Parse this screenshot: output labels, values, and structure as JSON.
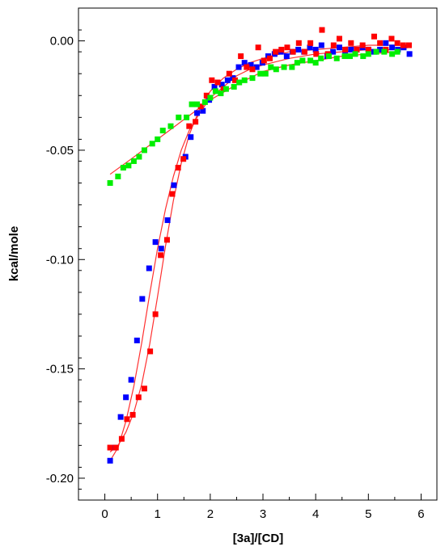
{
  "chart_data": {
    "type": "scatter",
    "title": "",
    "xlabel": "[3a]/[CD]",
    "ylabel": "kcal/mole",
    "xlim": [
      -0.5,
      6.3
    ],
    "ylim": [
      -0.21,
      0.015
    ],
    "x_ticks": [
      0,
      1,
      2,
      3,
      4,
      5,
      6
    ],
    "x_tick_labels": [
      "0",
      "1",
      "2",
      "3",
      "4",
      "5",
      "6"
    ],
    "y_ticks": [
      0.0,
      -0.05,
      -0.1,
      -0.15,
      -0.2
    ],
    "y_tick_labels": [
      "0.00",
      "-0.05",
      "-0.10",
      "-0.15",
      "-0.20"
    ],
    "grid": false,
    "legend": "none",
    "fit_line_color": "#ff3030",
    "series": [
      {
        "color": "#0000ff",
        "points": [
          [
            0.1,
            -0.192
          ],
          [
            0.2,
            -0.186
          ],
          [
            0.3,
            -0.172
          ],
          [
            0.4,
            -0.163
          ],
          [
            0.5,
            -0.155
          ],
          [
            0.61,
            -0.137
          ],
          [
            0.71,
            -0.118
          ],
          [
            0.84,
            -0.104
          ],
          [
            0.96,
            -0.092
          ],
          [
            1.07,
            -0.095
          ],
          [
            1.19,
            -0.082
          ],
          [
            1.31,
            -0.066
          ],
          [
            1.53,
            -0.053
          ],
          [
            1.63,
            -0.044
          ],
          [
            1.75,
            -0.033
          ],
          [
            1.86,
            -0.032
          ],
          [
            1.98,
            -0.027
          ],
          [
            2.08,
            -0.021
          ],
          [
            2.22,
            -0.02
          ],
          [
            2.33,
            -0.018
          ],
          [
            2.43,
            -0.017
          ],
          [
            2.54,
            -0.012
          ],
          [
            2.65,
            -0.01
          ],
          [
            2.77,
            -0.011
          ],
          [
            2.88,
            -0.012
          ],
          [
            2.99,
            -0.01
          ],
          [
            3.1,
            -0.007
          ],
          [
            3.22,
            -0.006
          ],
          [
            3.34,
            -0.005
          ],
          [
            3.45,
            -0.007
          ],
          [
            3.56,
            -0.005
          ],
          [
            3.67,
            -0.004
          ],
          [
            3.78,
            -0.005
          ],
          [
            3.89,
            -0.003
          ],
          [
            4.0,
            -0.004
          ],
          [
            4.11,
            -0.002
          ],
          [
            4.22,
            -0.007
          ],
          [
            4.33,
            -0.005
          ],
          [
            4.45,
            -0.003
          ],
          [
            4.56,
            -0.005
          ],
          [
            4.67,
            -0.004
          ],
          [
            4.78,
            -0.004
          ],
          [
            4.89,
            -0.003
          ],
          [
            5.0,
            -0.004
          ],
          [
            5.11,
            -0.005
          ],
          [
            5.22,
            -0.004
          ],
          [
            5.33,
            -0.001
          ],
          [
            5.45,
            -0.003
          ],
          [
            5.56,
            -0.004
          ],
          [
            5.67,
            -0.003
          ],
          [
            5.78,
            -0.006
          ]
        ]
      },
      {
        "color": "#ff0000",
        "points": [
          [
            0.1,
            -0.186
          ],
          [
            0.21,
            -0.186
          ],
          [
            0.32,
            -0.182
          ],
          [
            0.42,
            -0.173
          ],
          [
            0.53,
            -0.171
          ],
          [
            0.64,
            -0.163
          ],
          [
            0.75,
            -0.159
          ],
          [
            0.86,
            -0.142
          ],
          [
            0.96,
            -0.125
          ],
          [
            1.06,
            -0.098
          ],
          [
            1.18,
            -0.091
          ],
          [
            1.28,
            -0.07
          ],
          [
            1.39,
            -0.058
          ],
          [
            1.49,
            -0.054
          ],
          [
            1.6,
            -0.039
          ],
          [
            1.72,
            -0.037
          ],
          [
            1.82,
            -0.03
          ],
          [
            1.93,
            -0.025
          ],
          [
            2.03,
            -0.018
          ],
          [
            2.14,
            -0.019
          ],
          [
            2.25,
            -0.022
          ],
          [
            2.36,
            -0.015
          ],
          [
            2.47,
            -0.018
          ],
          [
            2.58,
            -0.007
          ],
          [
            2.69,
            -0.012
          ],
          [
            2.8,
            -0.013
          ],
          [
            2.91,
            -0.003
          ],
          [
            3.02,
            -0.009
          ],
          [
            3.13,
            -0.008
          ],
          [
            3.24,
            -0.005
          ],
          [
            3.35,
            -0.004
          ],
          [
            3.46,
            -0.003
          ],
          [
            3.57,
            -0.005
          ],
          [
            3.68,
            -0.001
          ],
          [
            3.79,
            -0.005
          ],
          [
            3.9,
            -0.001
          ],
          [
            4.01,
            -0.006
          ],
          [
            4.12,
            0.005
          ],
          [
            4.23,
            -0.006
          ],
          [
            4.34,
            -0.002
          ],
          [
            4.45,
            0.001
          ],
          [
            4.56,
            -0.004
          ],
          [
            4.67,
            -0.001
          ],
          [
            4.78,
            -0.004
          ],
          [
            4.89,
            -0.002
          ],
          [
            5.0,
            -0.004
          ],
          [
            5.11,
            0.002
          ],
          [
            5.22,
            -0.001
          ],
          [
            5.33,
            -0.004
          ],
          [
            5.44,
            0.001
          ],
          [
            5.55,
            -0.001
          ],
          [
            5.66,
            -0.002
          ],
          [
            5.77,
            -0.002
          ]
        ]
      },
      {
        "color": "#00ee00",
        "points": [
          [
            0.1,
            -0.065
          ],
          [
            0.25,
            -0.062
          ],
          [
            0.35,
            -0.058
          ],
          [
            0.45,
            -0.057
          ],
          [
            0.55,
            -0.055
          ],
          [
            0.65,
            -0.053
          ],
          [
            0.75,
            -0.05
          ],
          [
            0.9,
            -0.047
          ],
          [
            1.0,
            -0.045
          ],
          [
            1.1,
            -0.041
          ],
          [
            1.25,
            -0.039
          ],
          [
            1.4,
            -0.035
          ],
          [
            1.55,
            -0.035
          ],
          [
            1.65,
            -0.029
          ],
          [
            1.75,
            -0.029
          ],
          [
            1.9,
            -0.028
          ],
          [
            2.0,
            -0.026
          ],
          [
            2.1,
            -0.023
          ],
          [
            2.2,
            -0.024
          ],
          [
            2.3,
            -0.022
          ],
          [
            2.45,
            -0.021
          ],
          [
            2.55,
            -0.019
          ],
          [
            2.65,
            -0.018
          ],
          [
            2.8,
            -0.017
          ],
          [
            2.95,
            -0.015
          ],
          [
            3.05,
            -0.015
          ],
          [
            3.15,
            -0.012
          ],
          [
            3.25,
            -0.013
          ],
          [
            3.4,
            -0.012
          ],
          [
            3.55,
            -0.012
          ],
          [
            3.65,
            -0.01
          ],
          [
            3.75,
            -0.009
          ],
          [
            3.9,
            -0.009
          ],
          [
            4.0,
            -0.01
          ],
          [
            4.1,
            -0.008
          ],
          [
            4.25,
            -0.007
          ],
          [
            4.4,
            -0.008
          ],
          [
            4.55,
            -0.007
          ],
          [
            4.65,
            -0.007
          ],
          [
            4.75,
            -0.006
          ],
          [
            4.9,
            -0.007
          ],
          [
            5.0,
            -0.006
          ],
          [
            5.15,
            -0.005
          ],
          [
            5.3,
            -0.005
          ],
          [
            5.45,
            -0.006
          ],
          [
            5.55,
            -0.005
          ]
        ]
      }
    ],
    "fit_curves": [
      {
        "points": [
          [
            0.1,
            -0.192
          ],
          [
            0.25,
            -0.186
          ],
          [
            0.4,
            -0.174
          ],
          [
            0.55,
            -0.158
          ],
          [
            0.7,
            -0.138
          ],
          [
            0.85,
            -0.116
          ],
          [
            1.0,
            -0.095
          ],
          [
            1.15,
            -0.077
          ],
          [
            1.3,
            -0.062
          ],
          [
            1.45,
            -0.05
          ],
          [
            1.6,
            -0.041
          ],
          [
            1.8,
            -0.033
          ],
          [
            2.0,
            -0.026
          ],
          [
            2.25,
            -0.021
          ],
          [
            2.5,
            -0.016
          ],
          [
            2.75,
            -0.013
          ],
          [
            3.0,
            -0.011
          ],
          [
            3.5,
            -0.008
          ],
          [
            4.0,
            -0.006
          ],
          [
            4.5,
            -0.005
          ],
          [
            5.0,
            -0.004
          ],
          [
            5.5,
            -0.004
          ],
          [
            5.78,
            -0.003
          ]
        ]
      },
      {
        "points": [
          [
            0.1,
            -0.188
          ],
          [
            0.25,
            -0.185
          ],
          [
            0.4,
            -0.179
          ],
          [
            0.55,
            -0.17
          ],
          [
            0.7,
            -0.157
          ],
          [
            0.85,
            -0.139
          ],
          [
            1.0,
            -0.117
          ],
          [
            1.15,
            -0.094
          ],
          [
            1.3,
            -0.073
          ],
          [
            1.45,
            -0.056
          ],
          [
            1.6,
            -0.043
          ],
          [
            1.8,
            -0.031
          ],
          [
            2.0,
            -0.023
          ],
          [
            2.25,
            -0.017
          ],
          [
            2.5,
            -0.013
          ],
          [
            2.75,
            -0.01
          ],
          [
            3.0,
            -0.008
          ],
          [
            3.5,
            -0.005
          ],
          [
            4.0,
            -0.004
          ],
          [
            4.5,
            -0.003
          ],
          [
            5.0,
            -0.002
          ],
          [
            5.5,
            -0.002
          ],
          [
            5.77,
            -0.002
          ]
        ]
      },
      {
        "points": [
          [
            0.1,
            -0.061
          ],
          [
            0.5,
            -0.054
          ],
          [
            1.0,
            -0.045
          ],
          [
            1.5,
            -0.036
          ],
          [
            2.0,
            -0.027
          ],
          [
            2.5,
            -0.02
          ],
          [
            3.0,
            -0.014
          ],
          [
            3.5,
            -0.011
          ],
          [
            4.0,
            -0.009
          ],
          [
            4.5,
            -0.007
          ],
          [
            5.0,
            -0.006
          ],
          [
            5.55,
            -0.005
          ]
        ]
      }
    ]
  }
}
